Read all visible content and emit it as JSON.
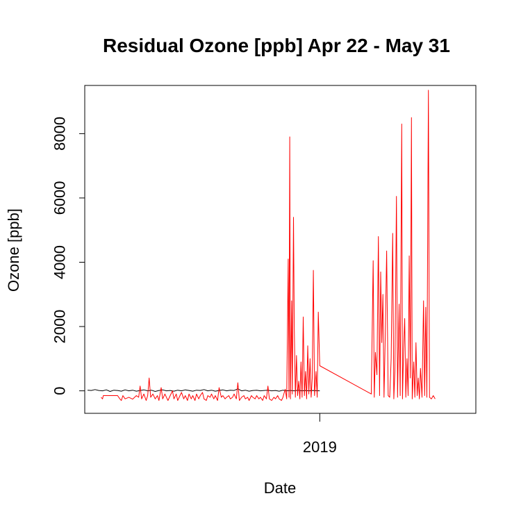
{
  "chart_data": {
    "type": "line",
    "title": "Residual Ozone [ppb] Apr 22 - May 31",
    "xlabel": "Date",
    "ylabel": "Ozone [ppb]",
    "ylim": [
      -700,
      9500
    ],
    "xlim": [
      0,
      100
    ],
    "grid": false,
    "legend": "none",
    "x_ticks": [
      {
        "x": 61.8,
        "label": "2019"
      }
    ],
    "y_ticks": [
      {
        "value": 0,
        "label": "0"
      },
      {
        "value": 2000,
        "label": "2000"
      },
      {
        "value": 4000,
        "label": "4000"
      },
      {
        "value": 6000,
        "label": "6000"
      },
      {
        "value": 8000,
        "label": "8000"
      }
    ],
    "series": [
      {
        "color": "#000000",
        "points": [
          [
            0.0,
            20
          ],
          [
            1.0,
            10
          ],
          [
            2.0,
            40
          ],
          [
            3.0,
            10
          ],
          [
            4.0,
            0
          ],
          [
            5.0,
            30
          ],
          [
            6.0,
            -20
          ],
          [
            7.0,
            20
          ],
          [
            8.0,
            10
          ],
          [
            9.0,
            -10
          ],
          [
            10.0,
            30
          ],
          [
            11.0,
            0
          ],
          [
            12.0,
            20
          ],
          [
            13.0,
            -10
          ],
          [
            14.0,
            10
          ],
          [
            15.0,
            30
          ],
          [
            16.0,
            0
          ],
          [
            17.0,
            20
          ],
          [
            18.0,
            -20
          ],
          [
            19.0,
            10
          ],
          [
            20.0,
            30
          ],
          [
            21.0,
            0
          ],
          [
            22.0,
            10
          ],
          [
            23.0,
            -10
          ],
          [
            24.0,
            20
          ],
          [
            25.0,
            0
          ],
          [
            26.0,
            30
          ],
          [
            27.0,
            10
          ],
          [
            28.0,
            -10
          ],
          [
            29.0,
            20
          ],
          [
            30.0,
            10
          ],
          [
            31.0,
            40
          ],
          [
            32.0,
            0
          ],
          [
            33.0,
            20
          ],
          [
            34.0,
            -10
          ],
          [
            35.0,
            10
          ],
          [
            36.0,
            30
          ],
          [
            37.0,
            0
          ],
          [
            38.0,
            20
          ],
          [
            39.0,
            10
          ],
          [
            40.0,
            60
          ],
          [
            41.0,
            0
          ],
          [
            42.0,
            20
          ],
          [
            43.0,
            -10
          ],
          [
            44.0,
            10
          ],
          [
            45.0,
            20
          ],
          [
            46.0,
            0
          ],
          [
            47.0,
            10
          ],
          [
            48.0,
            20
          ],
          [
            49.0,
            0
          ],
          [
            50.0,
            10
          ],
          [
            51.0,
            -10
          ],
          [
            52.0,
            20
          ],
          [
            53.0,
            0
          ],
          [
            54.0,
            10
          ],
          [
            55.0,
            0
          ],
          [
            56.0,
            20
          ],
          [
            57.0,
            0
          ],
          [
            58.0,
            10
          ],
          [
            59.0,
            0
          ],
          [
            60.0,
            10
          ],
          [
            61.8,
            0
          ]
        ]
      },
      {
        "color": "#ff0000",
        "points": [
          [
            3.6,
            -200
          ],
          [
            4.0,
            -250
          ],
          [
            4.2,
            -150
          ],
          [
            8.0,
            -150
          ],
          [
            8.6,
            -250
          ],
          [
            9.0,
            -300
          ],
          [
            9.4,
            -150
          ],
          [
            10.0,
            -250
          ],
          [
            11.0,
            -200
          ],
          [
            12.0,
            -260
          ],
          [
            13.0,
            -150
          ],
          [
            13.6,
            -200
          ],
          [
            14.0,
            150
          ],
          [
            14.4,
            -250
          ],
          [
            15.0,
            -100
          ],
          [
            15.6,
            -300
          ],
          [
            16.0,
            -150
          ],
          [
            16.4,
            400
          ],
          [
            16.8,
            -200
          ],
          [
            17.4,
            -100
          ],
          [
            18.0,
            -250
          ],
          [
            18.6,
            -150
          ],
          [
            19.0,
            -300
          ],
          [
            19.6,
            100
          ],
          [
            20.0,
            -250
          ],
          [
            20.6,
            -100
          ],
          [
            21.0,
            -200
          ],
          [
            21.4,
            -300
          ],
          [
            22.0,
            -150
          ],
          [
            22.6,
            0
          ],
          [
            23.0,
            -250
          ],
          [
            23.6,
            -100
          ],
          [
            24.0,
            -300
          ],
          [
            24.6,
            -150
          ],
          [
            25.0,
            -50
          ],
          [
            25.6,
            -250
          ],
          [
            26.0,
            -150
          ],
          [
            26.6,
            -300
          ],
          [
            27.0,
            -100
          ],
          [
            27.6,
            -250
          ],
          [
            28.0,
            -150
          ],
          [
            28.6,
            -300
          ],
          [
            29.0,
            -100
          ],
          [
            29.6,
            -250
          ],
          [
            30.0,
            -150
          ],
          [
            30.6,
            -50
          ],
          [
            31.0,
            -250
          ],
          [
            31.6,
            -300
          ],
          [
            32.0,
            -150
          ],
          [
            32.6,
            -200
          ],
          [
            33.0,
            -100
          ],
          [
            33.6,
            -250
          ],
          [
            34.0,
            -150
          ],
          [
            34.6,
            -300
          ],
          [
            35.0,
            100
          ],
          [
            35.6,
            -200
          ],
          [
            36.0,
            -150
          ],
          [
            36.6,
            -250
          ],
          [
            37.0,
            -200
          ],
          [
            37.6,
            -150
          ],
          [
            38.0,
            -250
          ],
          [
            38.6,
            -200
          ],
          [
            39.0,
            -100
          ],
          [
            39.6,
            -250
          ],
          [
            40.0,
            250
          ],
          [
            40.4,
            -300
          ],
          [
            41.0,
            -200
          ],
          [
            41.6,
            -150
          ],
          [
            42.0,
            -250
          ],
          [
            42.6,
            -200
          ],
          [
            43.0,
            -300
          ],
          [
            43.6,
            -150
          ],
          [
            44.0,
            -200
          ],
          [
            44.6,
            -250
          ],
          [
            45.0,
            -150
          ],
          [
            45.6,
            -250
          ],
          [
            46.0,
            -200
          ],
          [
            46.6,
            -300
          ],
          [
            47.0,
            -150
          ],
          [
            47.6,
            -250
          ],
          [
            48.0,
            150
          ],
          [
            48.4,
            -250
          ],
          [
            49.0,
            -300
          ],
          [
            49.6,
            -200
          ],
          [
            50.0,
            -250
          ],
          [
            50.6,
            -150
          ],
          [
            51.0,
            -250
          ],
          [
            51.6,
            -300
          ],
          [
            52.0,
            -200
          ],
          [
            52.6,
            50
          ],
          [
            53.0,
            -250
          ],
          [
            53.4,
            4100
          ],
          [
            53.6,
            -200
          ],
          [
            53.8,
            7900
          ],
          [
            54.0,
            -250
          ],
          [
            54.3,
            2800
          ],
          [
            54.5,
            -100
          ],
          [
            54.8,
            5400
          ],
          [
            55.0,
            2000
          ],
          [
            55.3,
            -200
          ],
          [
            55.6,
            1100
          ],
          [
            55.9,
            -150
          ],
          [
            56.2,
            300
          ],
          [
            56.5,
            -250
          ],
          [
            56.8,
            900
          ],
          [
            57.1,
            -200
          ],
          [
            57.4,
            2300
          ],
          [
            57.7,
            -150
          ],
          [
            58.0,
            600
          ],
          [
            58.3,
            -250
          ],
          [
            58.6,
            1400
          ],
          [
            58.9,
            -100
          ],
          [
            59.2,
            1000
          ],
          [
            59.5,
            -200
          ],
          [
            59.8,
            400
          ],
          [
            60.1,
            3750
          ],
          [
            60.4,
            -150
          ],
          [
            60.8,
            600
          ],
          [
            61.1,
            -200
          ],
          [
            61.4,
            2450
          ],
          [
            61.8,
            780
          ],
          [
            75.5,
            -100
          ],
          [
            76.0,
            4050
          ],
          [
            76.3,
            -200
          ],
          [
            76.6,
            1200
          ],
          [
            77.0,
            500
          ],
          [
            77.4,
            4800
          ],
          [
            77.7,
            -150
          ],
          [
            78.0,
            3700
          ],
          [
            78.3,
            1500
          ],
          [
            78.6,
            3000
          ],
          [
            78.9,
            -200
          ],
          [
            79.2,
            1600
          ],
          [
            79.6,
            4350
          ],
          [
            80.0,
            -150
          ],
          [
            80.4,
            -200
          ],
          [
            80.8,
            1000
          ],
          [
            81.2,
            4900
          ],
          [
            81.5,
            -250
          ],
          [
            81.8,
            600
          ],
          [
            82.2,
            6050
          ],
          [
            82.5,
            -200
          ],
          [
            82.9,
            2700
          ],
          [
            83.2,
            -150
          ],
          [
            83.6,
            8300
          ],
          [
            83.8,
            -250
          ],
          [
            84.1,
            1300
          ],
          [
            84.4,
            2250
          ],
          [
            84.7,
            -200
          ],
          [
            85.0,
            1000
          ],
          [
            85.3,
            -150
          ],
          [
            85.6,
            4200
          ],
          [
            85.9,
            400
          ],
          [
            86.2,
            8500
          ],
          [
            86.4,
            -250
          ],
          [
            86.8,
            900
          ],
          [
            87.1,
            -200
          ],
          [
            87.4,
            1500
          ],
          [
            87.7,
            -150
          ],
          [
            88.0,
            400
          ],
          [
            88.3,
            -250
          ],
          [
            88.6,
            700
          ],
          [
            89.0,
            -200
          ],
          [
            89.4,
            2800
          ],
          [
            89.7,
            -150
          ],
          [
            90.0,
            2600
          ],
          [
            90.3,
            -200
          ],
          [
            90.7,
            9350
          ],
          [
            91.0,
            -200
          ],
          [
            91.5,
            -250
          ],
          [
            92.0,
            -150
          ],
          [
            92.5,
            -250
          ]
        ]
      }
    ]
  }
}
